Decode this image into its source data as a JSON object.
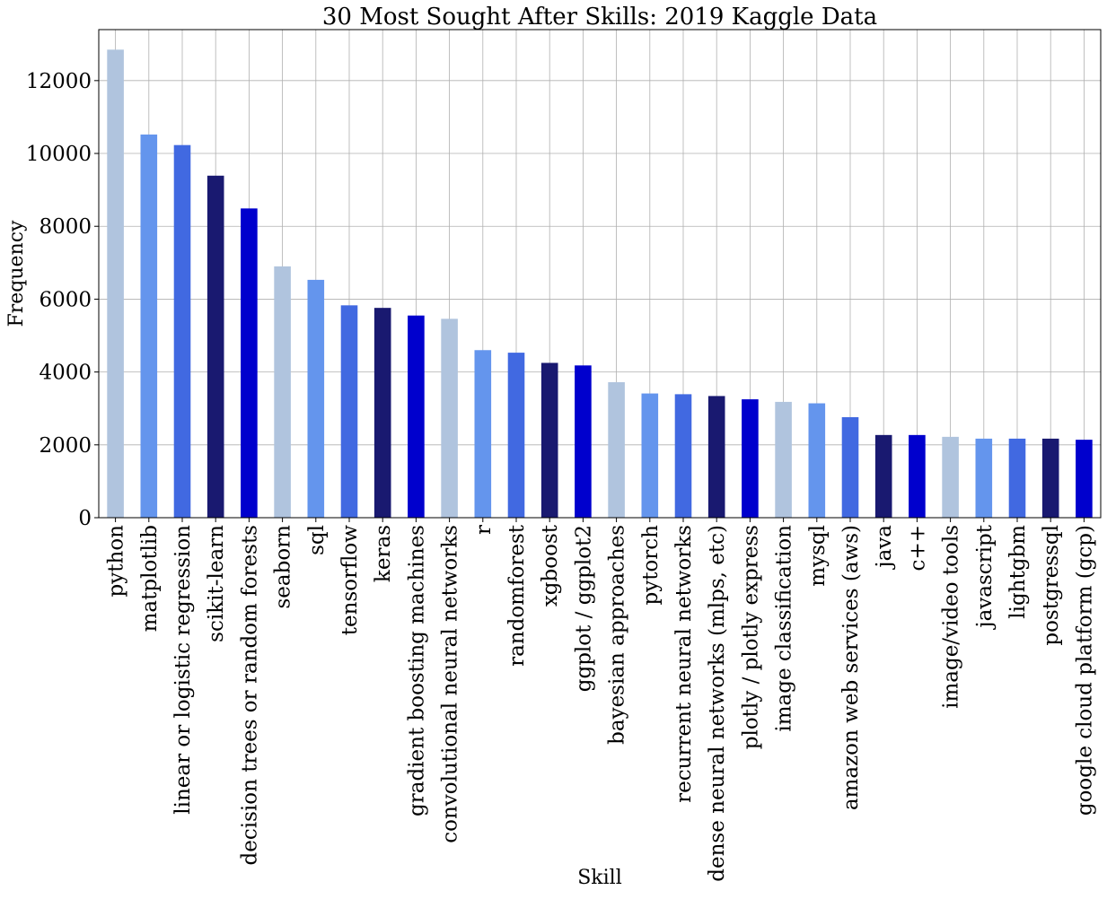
{
  "chart_data": {
    "type": "bar",
    "title": "30 Most Sought After Skills: 2019 Kaggle Data",
    "xlabel": "Skill",
    "ylabel": "Frequency",
    "ylim": [
      0,
      13400
    ],
    "yticks": [
      0,
      2000,
      4000,
      6000,
      8000,
      10000,
      12000
    ],
    "grid": true,
    "categories": [
      "python",
      "matplotlib",
      "linear or logistic regression",
      "scikit-learn",
      "decision trees or random forests",
      "seaborn",
      "sql",
      "tensorflow",
      "keras",
      "gradient boosting machines",
      "convolutional neural networks",
      "r",
      "randomforest",
      "xgboost",
      "ggplot / ggplot2",
      "bayesian approaches",
      "pytorch",
      "recurrent neural networks",
      "dense neural networks (mlps, etc)",
      "plotly / plotly express",
      "image classification",
      "mysql",
      "amazon web services (aws)",
      "java",
      "c++",
      "image/video tools",
      "javascript",
      "lightgbm",
      "postgressql",
      "google cloud platform (gcp)"
    ],
    "values": [
      12850,
      10520,
      10230,
      9390,
      8490,
      6900,
      6530,
      5830,
      5760,
      5550,
      5460,
      4600,
      4530,
      4250,
      4180,
      3720,
      3410,
      3390,
      3340,
      3250,
      3180,
      3140,
      2760,
      2270,
      2270,
      2220,
      2170,
      2170,
      2170,
      2140
    ],
    "colors": [
      "#b0c4de",
      "#6495ed",
      "#4169e1",
      "#191970",
      "#0000cd"
    ]
  }
}
